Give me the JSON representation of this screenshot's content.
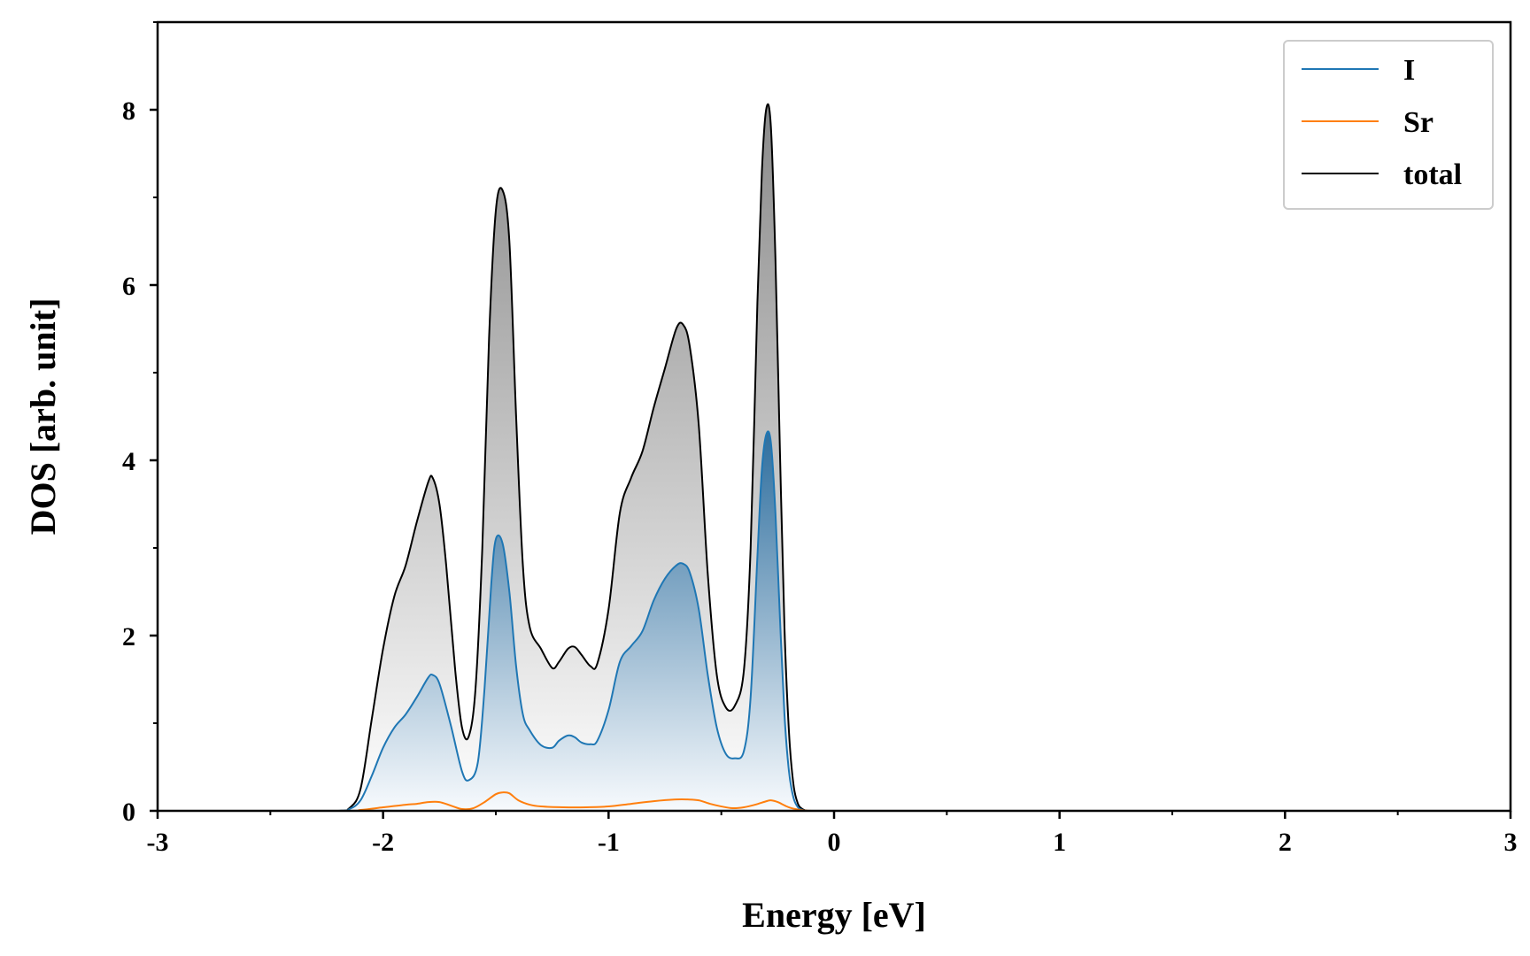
{
  "chart_data": {
    "type": "area",
    "title": "",
    "xlabel": "Energy [eV]",
    "ylabel": "DOS [arb. unit]",
    "xlim": [
      -3,
      3
    ],
    "ylim": [
      0,
      9
    ],
    "xticks": [
      -3,
      -2,
      -1,
      0,
      1,
      2,
      3
    ],
    "xtick_labels": [
      "-3",
      "-2",
      "-1",
      "0",
      "1",
      "2",
      "3"
    ],
    "yticks": [
      0,
      2,
      4,
      6,
      8
    ],
    "ytick_labels": [
      "0",
      "2",
      "4",
      "6",
      "8"
    ],
    "grid": false,
    "legend_position": "top-right",
    "series": [
      {
        "name": "I",
        "color": "#1f77b4",
        "fill": "gradient",
        "x": [
          -3.0,
          -2.5,
          -2.2,
          -2.15,
          -2.1,
          -2.05,
          -2.0,
          -1.95,
          -1.9,
          -1.85,
          -1.8,
          -1.78,
          -1.75,
          -1.7,
          -1.65,
          -1.62,
          -1.58,
          -1.55,
          -1.52,
          -1.5,
          -1.47,
          -1.44,
          -1.41,
          -1.38,
          -1.35,
          -1.3,
          -1.25,
          -1.22,
          -1.18,
          -1.15,
          -1.12,
          -1.08,
          -1.05,
          -1.0,
          -0.95,
          -0.9,
          -0.85,
          -0.8,
          -0.75,
          -0.7,
          -0.67,
          -0.64,
          -0.6,
          -0.56,
          -0.52,
          -0.48,
          -0.44,
          -0.4,
          -0.37,
          -0.34,
          -0.32,
          -0.3,
          -0.28,
          -0.26,
          -0.24,
          -0.22,
          -0.2,
          -0.18,
          -0.16,
          -0.14,
          -0.12,
          -0.1,
          -0.05,
          0.0,
          3.0
        ],
        "y": [
          0.0,
          0.0,
          0.0,
          0.02,
          0.12,
          0.4,
          0.72,
          0.95,
          1.1,
          1.3,
          1.52,
          1.55,
          1.45,
          0.98,
          0.45,
          0.35,
          0.55,
          1.4,
          2.6,
          3.1,
          3.05,
          2.5,
          1.65,
          1.1,
          0.92,
          0.75,
          0.72,
          0.8,
          0.86,
          0.84,
          0.78,
          0.76,
          0.8,
          1.15,
          1.7,
          1.88,
          2.05,
          2.4,
          2.65,
          2.8,
          2.82,
          2.72,
          2.3,
          1.55,
          0.95,
          0.65,
          0.6,
          0.68,
          1.3,
          2.9,
          3.9,
          4.3,
          4.2,
          3.4,
          2.2,
          1.1,
          0.45,
          0.15,
          0.04,
          0.01,
          0.0,
          0.0,
          0.0,
          0.0,
          0.0
        ]
      },
      {
        "name": "Sr",
        "color": "#ff7f0e",
        "fill": "none",
        "x": [
          -3.0,
          -2.2,
          -2.1,
          -2.0,
          -1.9,
          -1.85,
          -1.8,
          -1.75,
          -1.7,
          -1.65,
          -1.6,
          -1.55,
          -1.5,
          -1.47,
          -1.44,
          -1.4,
          -1.35,
          -1.3,
          -1.2,
          -1.1,
          -1.0,
          -0.9,
          -0.8,
          -0.7,
          -0.65,
          -0.6,
          -0.55,
          -0.5,
          -0.45,
          -0.4,
          -0.35,
          -0.3,
          -0.28,
          -0.25,
          -0.2,
          -0.15,
          -0.1,
          0.0,
          3.0
        ],
        "y": [
          0.0,
          0.0,
          0.01,
          0.04,
          0.07,
          0.08,
          0.1,
          0.1,
          0.06,
          0.02,
          0.03,
          0.1,
          0.19,
          0.21,
          0.2,
          0.12,
          0.07,
          0.05,
          0.04,
          0.04,
          0.05,
          0.08,
          0.11,
          0.13,
          0.13,
          0.12,
          0.08,
          0.05,
          0.03,
          0.04,
          0.07,
          0.11,
          0.12,
          0.1,
          0.04,
          0.01,
          0.0,
          0.0,
          0.0
        ]
      },
      {
        "name": "total",
        "color": "#000000",
        "fill": "gradient",
        "x": [
          -3.0,
          -2.5,
          -2.2,
          -2.15,
          -2.1,
          -2.05,
          -2.0,
          -1.95,
          -1.9,
          -1.85,
          -1.8,
          -1.78,
          -1.75,
          -1.72,
          -1.68,
          -1.65,
          -1.62,
          -1.59,
          -1.56,
          -1.53,
          -1.5,
          -1.47,
          -1.44,
          -1.41,
          -1.38,
          -1.35,
          -1.3,
          -1.25,
          -1.22,
          -1.18,
          -1.15,
          -1.12,
          -1.08,
          -1.05,
          -1.0,
          -0.95,
          -0.9,
          -0.85,
          -0.8,
          -0.75,
          -0.7,
          -0.67,
          -0.64,
          -0.6,
          -0.56,
          -0.52,
          -0.48,
          -0.44,
          -0.4,
          -0.37,
          -0.34,
          -0.32,
          -0.3,
          -0.28,
          -0.26,
          -0.24,
          -0.22,
          -0.2,
          -0.18,
          -0.16,
          -0.14,
          -0.12,
          -0.1,
          -0.05,
          0.0,
          3.0
        ],
        "y": [
          0.0,
          0.0,
          0.0,
          0.03,
          0.25,
          1.05,
          1.85,
          2.45,
          2.8,
          3.3,
          3.75,
          3.8,
          3.5,
          2.8,
          1.6,
          0.95,
          0.85,
          1.4,
          3.0,
          5.4,
          6.85,
          7.08,
          6.5,
          4.5,
          2.8,
          2.1,
          1.85,
          1.63,
          1.7,
          1.85,
          1.87,
          1.78,
          1.65,
          1.68,
          2.3,
          3.4,
          3.8,
          4.1,
          4.6,
          5.05,
          5.5,
          5.55,
          5.3,
          4.4,
          2.7,
          1.55,
          1.18,
          1.2,
          1.6,
          3.0,
          5.8,
          7.3,
          8.02,
          7.8,
          6.3,
          4.1,
          2.1,
          0.9,
          0.3,
          0.08,
          0.02,
          0.0,
          0.0,
          0.0,
          0.0,
          0.0
        ]
      }
    ]
  }
}
